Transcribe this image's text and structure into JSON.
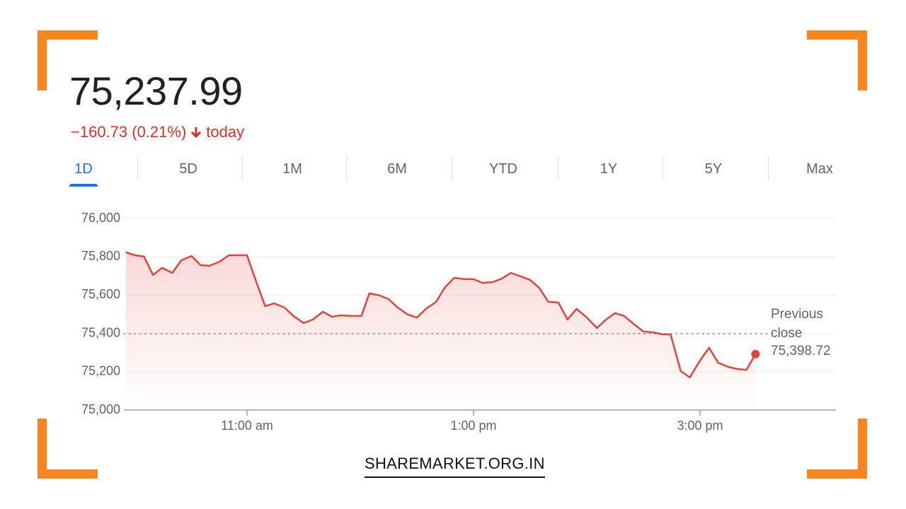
{
  "header": {
    "price": "75,237.99",
    "change": "−160.73 (0.21%)",
    "period": "today"
  },
  "tabs": {
    "items": [
      "1D",
      "5D",
      "1M",
      "6M",
      "YTD",
      "1Y",
      "5Y",
      "Max"
    ],
    "selected": 0
  },
  "chart_data": {
    "type": "line",
    "color": "#e0443a",
    "grid": true,
    "x": [
      9.93,
      10.01,
      10.09,
      10.17,
      10.25,
      10.34,
      10.42,
      10.51,
      10.59,
      10.67,
      10.76,
      10.84,
      10.92,
      11.0,
      11.08,
      11.16,
      11.24,
      11.33,
      11.41,
      11.5,
      11.58,
      11.67,
      11.75,
      11.83,
      11.92,
      12.01,
      12.08,
      12.17,
      12.25,
      12.33,
      12.42,
      12.5,
      12.58,
      12.67,
      12.75,
      12.83,
      12.92,
      13.0,
      13.08,
      13.17,
      13.25,
      13.33,
      13.42,
      13.5,
      13.58,
      13.66,
      13.75,
      13.83,
      13.91,
      14.0,
      14.09,
      14.17,
      14.25,
      14.33,
      14.42,
      14.5,
      14.58,
      14.67,
      14.74,
      14.83,
      14.91,
      15.0,
      15.08,
      15.16,
      15.25,
      15.33,
      15.41,
      15.49
    ],
    "series": [
      {
        "name": "Price",
        "values": [
          75823,
          75808,
          75801,
          75705,
          75742,
          75716,
          75782,
          75804,
          75756,
          75753,
          75775,
          75808,
          75808,
          75808,
          75672,
          75542,
          75557,
          75535,
          75491,
          75454,
          75472,
          75513,
          75487,
          75494,
          75491,
          75491,
          75609,
          75598,
          75579,
          75535,
          75498,
          75483,
          75528,
          75565,
          75642,
          75690,
          75683,
          75683,
          75664,
          75668,
          75686,
          75716,
          75697,
          75679,
          75638,
          75565,
          75561,
          75472,
          75528,
          75483,
          75428,
          75472,
          75506,
          75491,
          75446,
          75410,
          75406,
          75395,
          75395,
          75203,
          75170,
          75258,
          75325,
          75247,
          75225,
          75214,
          75210,
          75292
        ]
      }
    ],
    "xlim": [
      9.9125,
      16.2
    ],
    "xticks": [
      {
        "value": 11,
        "label": "11:00 am"
      },
      {
        "value": 13,
        "label": "1:00 pm"
      },
      {
        "value": 15,
        "label": "3:00 pm"
      }
    ],
    "ylim": [
      75000,
      76000
    ],
    "yticks": [
      {
        "value": 75000,
        "label": "75,000"
      },
      {
        "value": 75200,
        "label": "75,200"
      },
      {
        "value": 75400,
        "label": "75,400"
      },
      {
        "value": 75600,
        "label": "75,600"
      },
      {
        "value": 75800,
        "label": "75,800"
      },
      {
        "value": 76000,
        "label": "76,000"
      }
    ],
    "reference_line": {
      "label": "Previous close",
      "value": 75398.72,
      "value_label": "75,398.72"
    }
  },
  "watermark": "SHAREMARKET.ORG.IN"
}
